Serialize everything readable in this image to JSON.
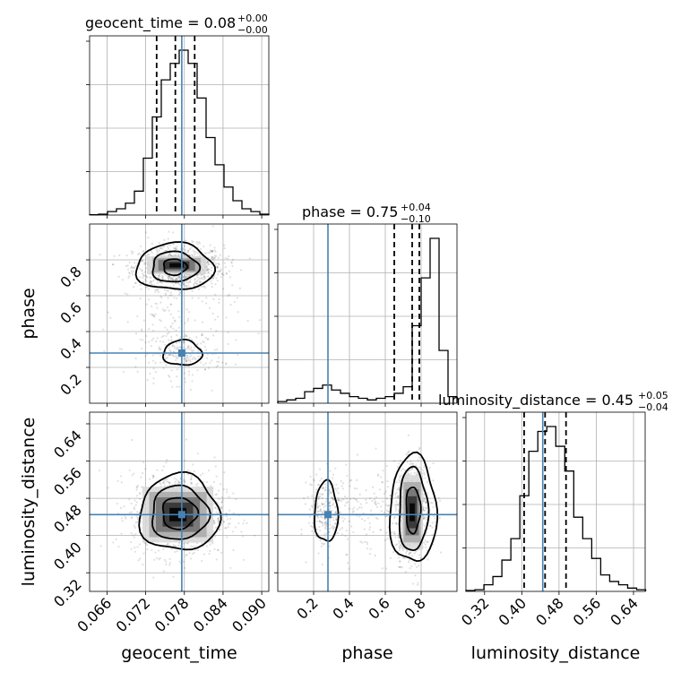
{
  "chart_data": {
    "type": "corner",
    "parameters": [
      "geocent_time",
      "phase",
      "luminosity_distance"
    ],
    "colors": {
      "truth": "#4682b4",
      "samples": "#000000",
      "grid": "#b0b0b0"
    },
    "truths": {
      "geocent_time": 0.0776,
      "phase": 0.28,
      "luminosity_distance": 0.445
    },
    "titles": [
      {
        "param": "geocent_time",
        "text": "geocent_time = 0.08",
        "plus": "+0.00",
        "minus": "−0.00"
      },
      {
        "param": "phase",
        "text": "phase = 0.75",
        "plus": "+0.04",
        "minus": "−0.10"
      },
      {
        "param": "luminosity_distance",
        "text": "luminosity_distance = 0.45",
        "plus": "+0.05",
        "minus": "−0.04"
      }
    ],
    "axes": {
      "geocent_time": {
        "label": "geocent_time",
        "range": [
          0.0633,
          0.0911
        ],
        "ticks": [
          "0.066",
          "0.072",
          "0.078",
          "0.084",
          "0.090"
        ]
      },
      "phase": {
        "label": "phase",
        "range": [
          0.0,
          1.0
        ],
        "ticks": [
          "0.2",
          "0.4",
          "0.6",
          "0.8"
        ]
      },
      "luminosity_distance": {
        "label": "luminosity_distance",
        "range": [
          0.28,
          0.665
        ],
        "ticks": [
          "0.32",
          "0.40",
          "0.48",
          "0.56",
          "0.64"
        ]
      }
    },
    "histograms": {
      "geocent_time": {
        "bin_start": 0.0633,
        "bin_width": 0.00139,
        "counts": [
          0.2,
          0.5,
          2.1,
          3.8,
          7.2,
          14.5,
          34.5,
          59.5,
          82.0,
          92.0,
          100.0,
          92.0,
          71.0,
          47.0,
          30.5,
          17.0,
          8.7,
          3.8,
          2.1,
          0.5
        ],
        "quantiles": [
          0.0737,
          0.0766,
          0.0796
        ]
      },
      "phase": {
        "bin_start": 0.0,
        "bin_width": 0.05,
        "counts": [
          1,
          2,
          3,
          7,
          9,
          11,
          8,
          6,
          4,
          3,
          2,
          3,
          4,
          6,
          10,
          47,
          76,
          100,
          32,
          4
        ],
        "quantiles": [
          0.65,
          0.75,
          0.79
        ]
      },
      "luminosity_distance": {
        "bin_start": 0.28,
        "bin_width": 0.0193,
        "counts": [
          0.5,
          1,
          4,
          9,
          19,
          32,
          58,
          85,
          97,
          100,
          88,
          73,
          45,
          32,
          20,
          10,
          6,
          4,
          2,
          1
        ],
        "quantiles": [
          0.405,
          0.45,
          0.495
        ]
      }
    }
  }
}
